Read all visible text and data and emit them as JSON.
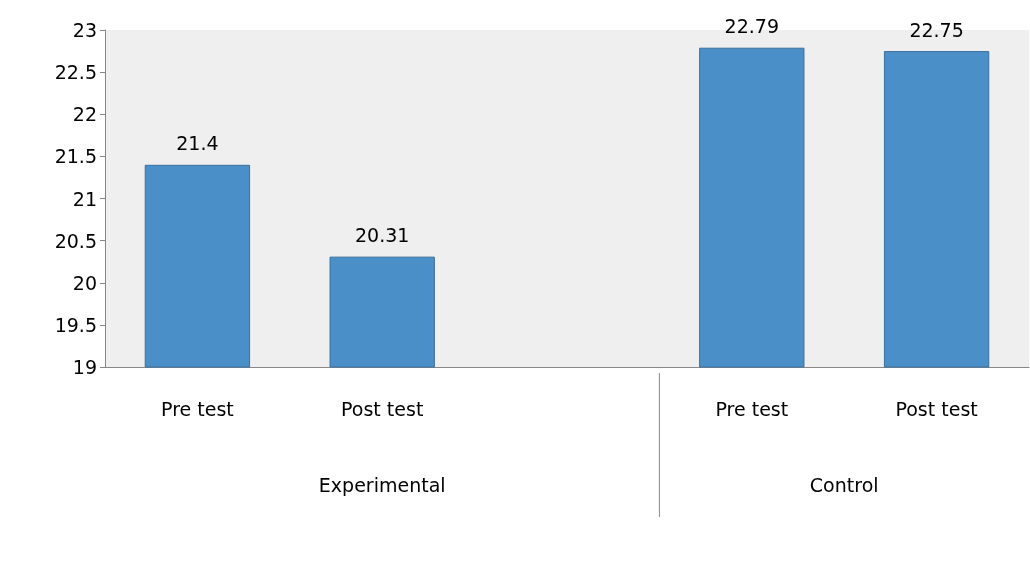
{
  "chart_data": {
    "type": "bar",
    "categories": [
      "Pre test",
      "Post test",
      null,
      "Pre test",
      "Post test"
    ],
    "values": [
      21.4,
      20.31,
      null,
      22.79,
      22.75
    ],
    "color": "#4a8fc8",
    "ylim": [
      19,
      23
    ],
    "yticks": [
      19,
      19.5,
      20,
      20.5,
      21,
      21.5,
      22,
      22.5,
      23
    ],
    "grid": false,
    "data_labels": true,
    "annotations": [
      "Experimental",
      "Control"
    ]
  }
}
